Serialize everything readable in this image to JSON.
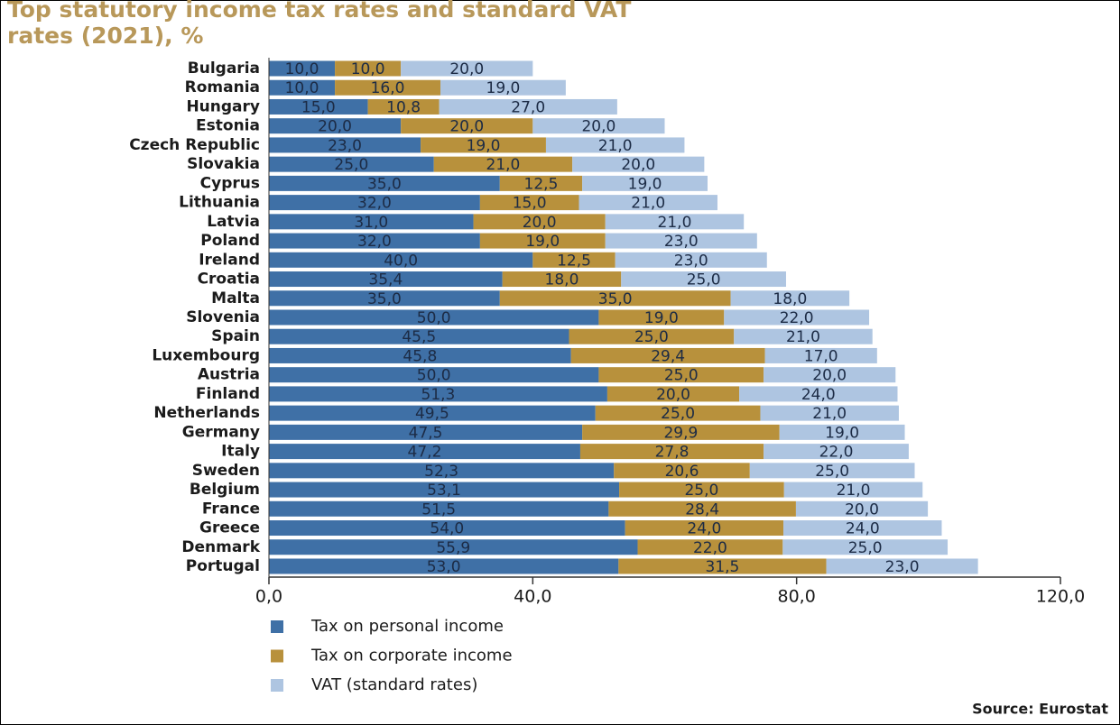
{
  "chart_data": {
    "type": "stacked-bar-horizontal",
    "title": "Top statutory income tax rates and standard VAT rates (2021), %",
    "source": "Source: Eurostat",
    "categories": [
      "Bulgaria",
      "Romania",
      "Hungary",
      "Estonia",
      "Czech Republic",
      "Slovakia",
      "Cyprus",
      "Lithuania",
      "Latvia",
      "Poland",
      "Ireland",
      "Croatia",
      "Malta",
      "Slovenia",
      "Spain",
      "Luxembourg",
      "Austria",
      "Finland",
      "Netherlands",
      "Germany",
      "Italy",
      "Sweden",
      "Belgium",
      "France",
      "Greece",
      "Denmark",
      "Portugal"
    ],
    "series": [
      {
        "name": "Tax on personal income",
        "color": "#3f70a6",
        "values": [
          10,
          10,
          15,
          20,
          23,
          25,
          35,
          32,
          31,
          32,
          40,
          35.4,
          35,
          50,
          45.5,
          45.8,
          50,
          51.3,
          49.5,
          47.5,
          47.2,
          52.3,
          53.1,
          51.5,
          54,
          55.9,
          53
        ],
        "value_labels": [
          "10,0",
          "10,0",
          "15,0",
          "20,0",
          "23,0",
          "25,0",
          "35,0",
          "32,0",
          "31,0",
          "32,0",
          "40,0",
          "35,4",
          "35,0",
          "50,0",
          "45,5",
          "45,8",
          "50,0",
          "51,3",
          "49,5",
          "47,5",
          "47,2",
          "52,3",
          "53,1",
          "51,5",
          "54,0",
          "55,9",
          "53,0"
        ]
      },
      {
        "name": "Tax on corporate income",
        "color": "#b8913c",
        "values": [
          10,
          16,
          10.8,
          20,
          19,
          21,
          12.5,
          15,
          20,
          19,
          12.5,
          18,
          35,
          19,
          25,
          29.4,
          25,
          20,
          25,
          29.9,
          27.8,
          20.6,
          25,
          28.4,
          24,
          22,
          31.5
        ],
        "value_labels": [
          "10,0",
          "16,0",
          "10,8",
          "20,0",
          "19,0",
          "21,0",
          "12,5",
          "15,0",
          "20,0",
          "19,0",
          "12,5",
          "18,0",
          "35,0",
          "19,0",
          "25,0",
          "29,4",
          "25,0",
          "20,0",
          "25,0",
          "29,9",
          "27,8",
          "20,6",
          "25,0",
          "28,4",
          "24,0",
          "22,0",
          "31,5"
        ]
      },
      {
        "name": "VAT (standard rates)",
        "color": "#aec5e1",
        "values": [
          20,
          19,
          27,
          20,
          21,
          20,
          19,
          21,
          21,
          23,
          23,
          25,
          18,
          22,
          21,
          17,
          20,
          24,
          21,
          19,
          22,
          25,
          21,
          20,
          24,
          25,
          23
        ],
        "value_labels": [
          "20,0",
          "19,0",
          "27,0",
          "20,0",
          "21,0",
          "20,0",
          "19,0",
          "21,0",
          "21,0",
          "23,0",
          "23,0",
          "25,0",
          "18,0",
          "22,0",
          "21,0",
          "17,0",
          "20,0",
          "24,0",
          "21,0",
          "19,0",
          "22,0",
          "25,0",
          "21,0",
          "20,0",
          "24,0",
          "25,0",
          "23,0"
        ]
      }
    ],
    "xlim": [
      0,
      120
    ],
    "xticks": [
      {
        "value": 0,
        "label": "0,0"
      },
      {
        "value": 40,
        "label": "40,0"
      },
      {
        "value": 80,
        "label": "80,0"
      },
      {
        "value": 120,
        "label": "120,0"
      }
    ]
  }
}
